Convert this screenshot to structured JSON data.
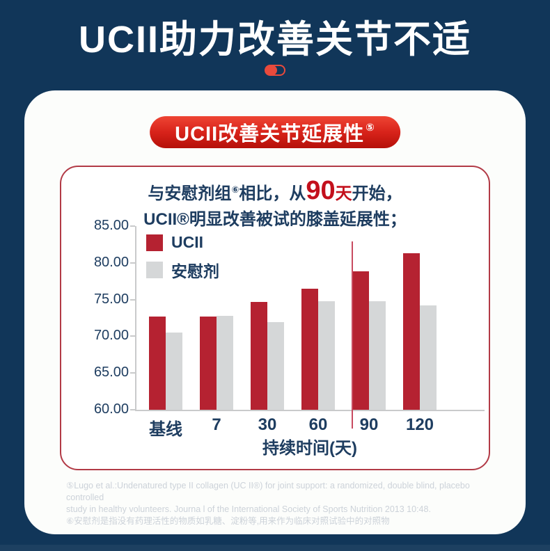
{
  "header": {
    "title": "UCII助力改善关节不适"
  },
  "banner": {
    "text": "UCII改善关节延展性",
    "sup": "⑤"
  },
  "chart_box": {
    "headline_line1": {
      "pre": "与安慰剂组",
      "sup": "⑥",
      "mid": "相比，从",
      "big_number": "90",
      "big_unit": "天",
      "post": "开始，"
    },
    "headline_line2": "UCII®明显改善被试的膝盖延展性；"
  },
  "chart_data": {
    "type": "bar",
    "categories": [
      "基线",
      "7",
      "30",
      "60",
      "90",
      "120"
    ],
    "series": [
      {
        "name": "UCII",
        "color": "#b52231",
        "values": [
          72.7,
          72.7,
          74.7,
          76.5,
          78.8,
          81.3
        ]
      },
      {
        "name": "安慰剂",
        "color": "#d5d7d8",
        "values": [
          70.5,
          72.8,
          71.9,
          74.8,
          74.8,
          74.2
        ]
      }
    ],
    "ylim": [
      60,
      85
    ],
    "ytick_labels": [
      "85.00",
      "80.00",
      "75.00",
      "70.00",
      "65.00",
      "60.00"
    ],
    "xlabel": "持续时间(天)",
    "legend_position": "top-left",
    "grid": false,
    "significance_line": {
      "category": "90",
      "color": "#c84b60"
    }
  },
  "footnotes": {
    "lines": [
      "⑤Lugo et al.:Undenatured type II collagen (UC II®) for joint support: a randomized, double blind, placebo controlled",
      "study in healthy volunteers. Journa l of the International Society of Sports Nutrition 2013 10:48.",
      "⑥安慰剂是指没有药理活性的物质如乳糖、淀粉等,用来作为临床对照试验中的对照物"
    ]
  },
  "colors": {
    "background": "#113659",
    "accent_red": "#c3101c",
    "banner_red": "#d8231a",
    "bar_red": "#b52231",
    "bar_gray": "#d5d7d8",
    "text_navy": "#1e3d60",
    "axis_gray": "#c9cacb",
    "footnote_gray": "#ccd2d9"
  }
}
